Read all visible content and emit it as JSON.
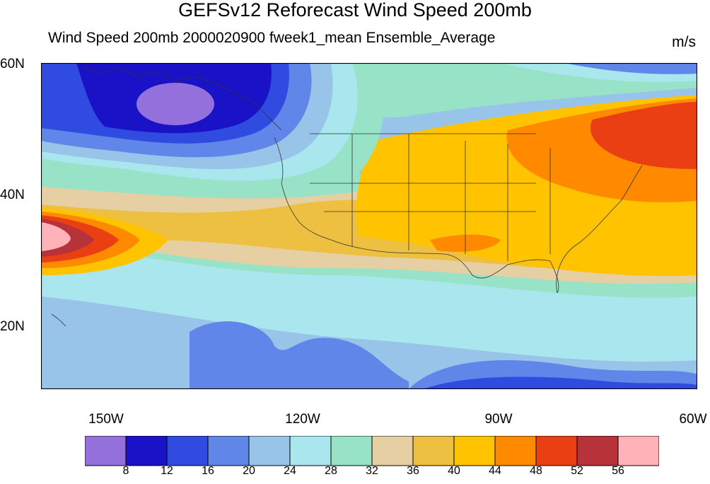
{
  "title": "GEFSv12 Reforecast Wind Speed 200mb",
  "subtitle": "Wind Speed 200mb 2000020900 fweek1_mean Ensemble_Average",
  "units": "m/s",
  "lat_labels": [
    "60N",
    "40N",
    "20N"
  ],
  "lon_labels": [
    "150W",
    "120W",
    "90W",
    "60W"
  ],
  "colorbar": {
    "colors": [
      "#9370DB",
      "#1A12C7",
      "#2F4BE0",
      "#5F86E8",
      "#98C4EA",
      "#A9E6EE",
      "#98E3C8",
      "#E6CFA2",
      "#EEC042",
      "#FFC300",
      "#FF8A00",
      "#EA3F12",
      "#B8323A",
      "#FFB3B8"
    ],
    "labels": [
      "8",
      "12",
      "16",
      "20",
      "24",
      "28",
      "32",
      "36",
      "40",
      "44",
      "48",
      "52",
      "56"
    ]
  }
}
